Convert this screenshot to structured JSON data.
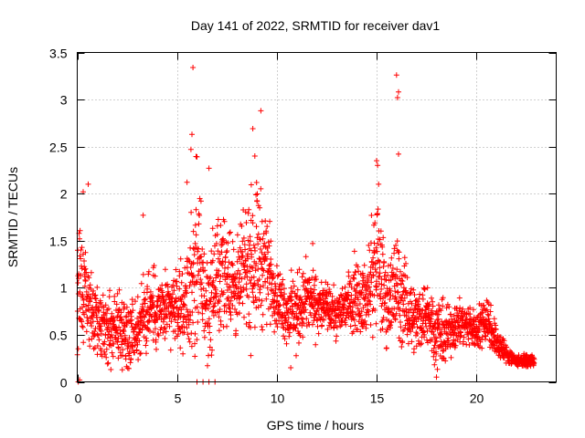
{
  "chart_data": {
    "type": "scatter",
    "title": "Day 141 of 2022, SRMTID for receiver dav1",
    "xlabel": "GPS time / hours",
    "ylabel": "SRMTID / TECUs",
    "xlim": [
      0,
      24
    ],
    "ylim": [
      0,
      3.5
    ],
    "x_ticks": [
      0,
      5,
      10,
      15,
      20
    ],
    "x_tick_labels": [
      "0",
      "5",
      "10",
      "15",
      "20"
    ],
    "y_ticks": [
      0,
      0.5,
      1,
      1.5,
      2,
      2.5,
      3,
      3.5
    ],
    "y_tick_labels": [
      "0",
      "0.5",
      "1",
      "1.5",
      "2",
      "2.5",
      "3",
      "3.5"
    ],
    "grid": true,
    "legend": "none",
    "marker": "+",
    "series": [
      {
        "name": "SRMTID",
        "color": "#ff0000",
        "envelope_x": [
          0,
          0.5,
          1,
          1.5,
          2,
          2.5,
          3,
          3.5,
          4,
          4.5,
          5,
          5.5,
          6,
          6.5,
          7,
          7.5,
          8,
          8.5,
          9,
          9.5,
          10,
          10.5,
          11,
          11.5,
          12,
          12.5,
          13,
          13.5,
          14,
          14.5,
          15,
          15.5,
          16,
          16.5,
          17,
          17.5,
          18,
          18.5,
          19,
          19.5,
          20,
          20.5,
          21,
          21.5,
          22,
          22.5,
          22.9
        ],
        "envelope_low": [
          0.0,
          0.3,
          0.1,
          0.05,
          0.05,
          0.1,
          0.05,
          0.2,
          0.25,
          0.3,
          0.3,
          0.2,
          0.05,
          0.05,
          0.3,
          0.4,
          0.3,
          0.5,
          0.3,
          0.5,
          0.5,
          0.3,
          0.2,
          0.4,
          0.4,
          0.5,
          0.4,
          0.5,
          0.4,
          0.4,
          0.3,
          0.3,
          0.2,
          0.3,
          0.2,
          0.3,
          0.05,
          0.1,
          0.3,
          0.3,
          0.3,
          0.3,
          0.2,
          0.15,
          0.15,
          0.15,
          0.15
        ],
        "envelope_high": [
          2.05,
          1.5,
          1.0,
          1.0,
          1.1,
          1.0,
          1.0,
          1.4,
          1.25,
          1.2,
          1.3,
          1.5,
          2.6,
          1.5,
          1.9,
          2.0,
          1.6,
          2.1,
          2.4,
          2.0,
          1.3,
          1.2,
          1.25,
          1.4,
          1.2,
          1.1,
          1.0,
          1.2,
          1.5,
          1.3,
          2.3,
          1.4,
          1.8,
          1.3,
          1.1,
          1.2,
          1.0,
          0.9,
          0.95,
          0.9,
          0.8,
          1.1,
          0.65,
          0.45,
          0.3,
          0.3,
          0.3
        ],
        "isolated_points": [
          {
            "x": 0.05,
            "y": 0.0
          },
          {
            "x": 0.12,
            "y": 0.02
          },
          {
            "x": 0.3,
            "y": 2.02
          },
          {
            "x": 0.55,
            "y": 2.1
          },
          {
            "x": 5.8,
            "y": 3.34
          },
          {
            "x": 5.75,
            "y": 2.63
          },
          {
            "x": 5.7,
            "y": 2.47
          },
          {
            "x": 5.5,
            "y": 2.12
          },
          {
            "x": 6.6,
            "y": 2.27
          },
          {
            "x": 3.3,
            "y": 1.77
          },
          {
            "x": 9.2,
            "y": 2.88
          },
          {
            "x": 8.8,
            "y": 2.69
          },
          {
            "x": 8.9,
            "y": 2.4
          },
          {
            "x": 15.0,
            "y": 2.35
          },
          {
            "x": 15.05,
            "y": 2.3
          },
          {
            "x": 15.1,
            "y": 2.1
          },
          {
            "x": 16.0,
            "y": 3.26
          },
          {
            "x": 16.1,
            "y": 3.08
          },
          {
            "x": 16.05,
            "y": 3.02
          },
          {
            "x": 16.1,
            "y": 2.42
          },
          {
            "x": 11.8,
            "y": 1.47
          },
          {
            "x": 14.6,
            "y": 1.45
          },
          {
            "x": 6.0,
            "y": 0.0
          },
          {
            "x": 6.3,
            "y": 0.0
          },
          {
            "x": 6.6,
            "y": 0.0
          },
          {
            "x": 6.9,
            "y": 0.0
          },
          {
            "x": 8.7,
            "y": 0.28
          },
          {
            "x": 10.7,
            "y": 0.15
          },
          {
            "x": 18.0,
            "y": 0.05
          }
        ]
      }
    ]
  }
}
